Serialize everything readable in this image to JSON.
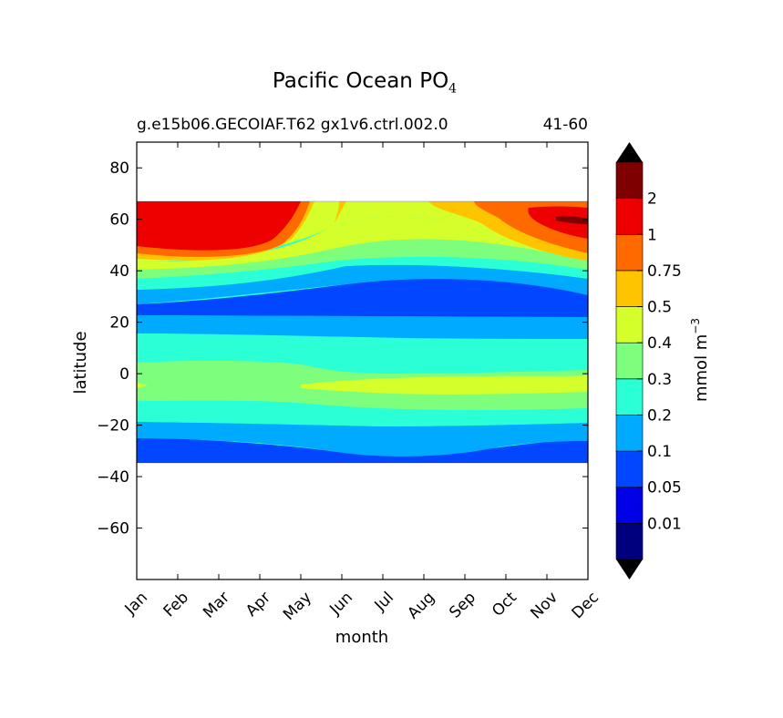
{
  "chart_data": {
    "type": "heatmap",
    "title": "Pacific Ocean PO",
    "title_subscript": "4",
    "subtitle_left": "g.e15b06.GECOIAF.T62 gx1v6.ctrl.002.0",
    "subtitle_right": "41-60",
    "xlabel": "month",
    "ylabel": "latitude",
    "x_categories": [
      "Jan",
      "Feb",
      "Mar",
      "Apr",
      "May",
      "Jun",
      "Jul",
      "Aug",
      "Sep",
      "Oct",
      "Nov",
      "Dec"
    ],
    "ylim": [
      -80,
      90
    ],
    "yticks": [
      80,
      60,
      40,
      20,
      0,
      -20,
      -40,
      -60
    ],
    "data_lat_range": [
      -34,
      67
    ],
    "colorbar": {
      "label": "mmol m",
      "label_superscript": "−3",
      "tick_labels": [
        "0.01",
        "0.05",
        "0.1",
        "0.2",
        "0.3",
        "0.4",
        "0.5",
        "0.75",
        "1",
        "2"
      ],
      "level_colors": [
        "#00007f",
        "#0000e6",
        "#0047ff",
        "#00aaff",
        "#2affd5",
        "#7dff7d",
        "#d5ff2a",
        "#ffc400",
        "#ff6a00",
        "#ee0000",
        "#7f0000"
      ],
      "extend": "both"
    },
    "band_boundaries_lat": [
      {
        "levels": [
          "0.05-0.1 | 0.1-0.2"
        ],
        "jan": 27,
        "mar": 26,
        "jun": 28,
        "aug": 35,
        "sep": 38,
        "oct": 36,
        "dec": 26
      },
      {
        "levels": [
          "0.1-0.2 | 0.2-0.3"
        ],
        "jan": 16,
        "jun": 16,
        "sep": 14,
        "dec": 16
      }
    ],
    "contour_bands": [
      {
        "level": "0.05-0.1",
        "lat_range": [
          -34,
          -25
        ],
        "note": "Jan-May and Oct-Dec"
      },
      {
        "level": "0.1-0.2",
        "lat_range": [
          -25,
          -19
        ]
      },
      {
        "level": "0.2-0.3",
        "lat_range": [
          -19,
          -11
        ]
      },
      {
        "level": "0.3-0.4",
        "lat_range": [
          -11,
          5
        ]
      },
      {
        "level": "0.4-0.5",
        "lat_range": [
          -8,
          0
        ],
        "note": "Jun-Dec equatorial core"
      },
      {
        "level": "0.3-0.4",
        "lat_range": [
          5,
          6
        ]
      },
      {
        "level": "0.2-0.3",
        "lat_range": [
          6,
          16
        ]
      },
      {
        "level": "0.1-0.2",
        "lat_range": [
          16,
          23
        ]
      },
      {
        "level": "0.05-0.1",
        "lat_range": [
          23,
          33
        ]
      },
      {
        "level": "0.1-0.2",
        "lat_range": [
          33,
          38
        ]
      },
      {
        "level": "0.2-0.3",
        "lat_range": [
          38,
          42
        ]
      },
      {
        "level": "0.3-0.4",
        "lat_range": [
          42,
          48
        ]
      },
      {
        "level": "0.4-0.5",
        "lat_range": [
          48,
          58
        ]
      },
      {
        "level": "0.5-0.75",
        "lat_range": [
          58,
          67
        ]
      },
      {
        "level": "0.75-1",
        "lat_range": [
          44,
          67
        ],
        "note": "winter months"
      },
      {
        "level": "1-2",
        "lat_range": [
          48,
          67
        ],
        "note": "Jan-May and Nov-Dec"
      }
    ]
  }
}
